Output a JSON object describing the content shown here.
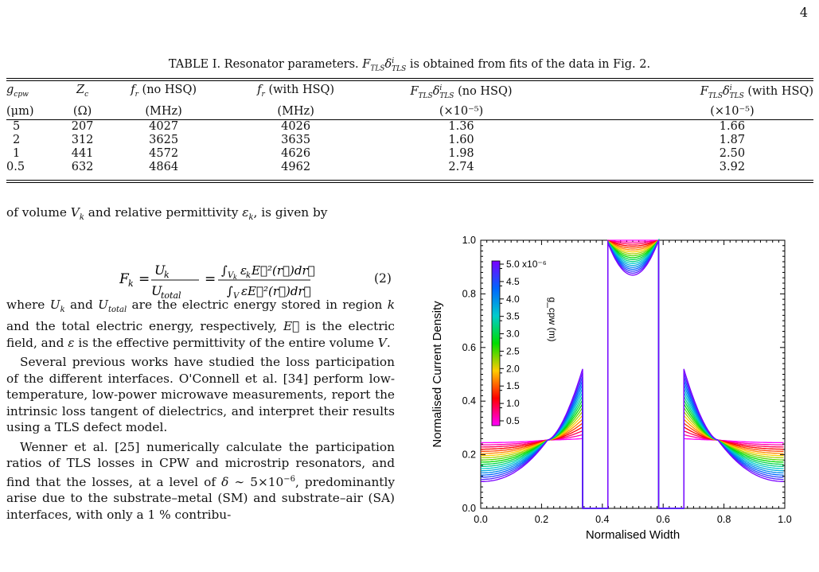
{
  "page_number": "4",
  "table": {
    "caption": "TABLE I. Resonator parameters. F_TLS δ^i_TLS is obtained from fits of the data in Fig. 2.",
    "headers": [
      [
        "g_cpw",
        "(μm)"
      ],
      [
        "Z_c",
        "(Ω)"
      ],
      [
        "f_r (no HSQ)",
        "(MHz)"
      ],
      [
        "f_r (with HSQ)",
        "(MHz)"
      ],
      [
        "F_TLS δ^i_TLS (no HSQ)",
        "(×10⁻⁵)"
      ],
      [
        "F_TLS δ^i_TLS (with HSQ)",
        "(×10⁻⁵)"
      ]
    ],
    "rows": [
      [
        "5",
        "207",
        "4027",
        "4026",
        "1.36",
        "1.66"
      ],
      [
        "2",
        "312",
        "3625",
        "3635",
        "1.60",
        "1.87"
      ],
      [
        "1",
        "441",
        "4572",
        "4626",
        "1.98",
        "2.50"
      ],
      [
        "0.5",
        "632",
        "4864",
        "4962",
        "2.74",
        "3.92"
      ]
    ]
  },
  "text": {
    "p0": "of volume V_k and relative permittivity ε_k, is given by",
    "equation": "F_k = U_k / U_total = ∫_{V_k} ε_k E⃗²(r⃗) dr⃗ / ∫_V ε E⃗²(r⃗) dr⃗",
    "equation_number": "(2)",
    "p1": "where U_k and U_total are the electric energy stored in region k and the total electric energy, respectively, E⃗ is the electric field, and ε is the effective permittivity of the entire volume V.",
    "p2": "Several previous works have studied the loss participation of the different interfaces. O'Connell et al. [34] perform low-temperature, low-power microwave measurements, report the intrinsic loss tangent of dielectrics, and interpret their results using a TLS defect model.",
    "p3": "Wenner et al. [25] numerically calculate the participation ratios of TLS losses in CPW and microstrip resonators, and find that the losses, at a level of δ ∼ 5×10⁻⁶, predominantly arise due to the substrate–metal (SM) and substrate–air (SA) interfaces, with only a 1 % contribu-"
  },
  "chart_data": {
    "type": "line",
    "xlabel": "Normalised Width",
    "ylabel": "Normalised Current Density",
    "xlim": [
      0,
      1.0
    ],
    "ylim": [
      0,
      1.0
    ],
    "xticks": [
      "0.0",
      "0.2",
      "0.4",
      "0.6",
      "0.8",
      "1.0"
    ],
    "yticks": [
      "0.0",
      "0.2",
      "0.4",
      "0.6",
      "0.8",
      "1.0"
    ],
    "strips": {
      "gap1": [
        0.335,
        0.418
      ],
      "center": [
        0.418,
        0.585
      ],
      "gap2": [
        0.585,
        0.668
      ]
    },
    "series_count": 19,
    "colorbar": {
      "title": "g_cpw (m)",
      "tick_labels": [
        "5.0 x10⁻⁶",
        "4.5",
        "4.0",
        "3.5",
        "3.0",
        "2.5",
        "2.0",
        "1.5",
        "1.0",
        "0.5"
      ],
      "range": [
        5e-07,
        5e-06
      ],
      "colors": [
        "#ff00ff",
        "#ff0000",
        "#ffcc00",
        "#00dd00",
        "#00cccc",
        "#0066ff",
        "#7a00ff"
      ]
    },
    "center_min_range": [
      0.87,
      1.0
    ],
    "edge_max_range": [
      0.26,
      0.52
    ],
    "far_value_range": [
      0.1,
      0.245
    ],
    "grid": false,
    "legend": "colorbar top-left"
  }
}
